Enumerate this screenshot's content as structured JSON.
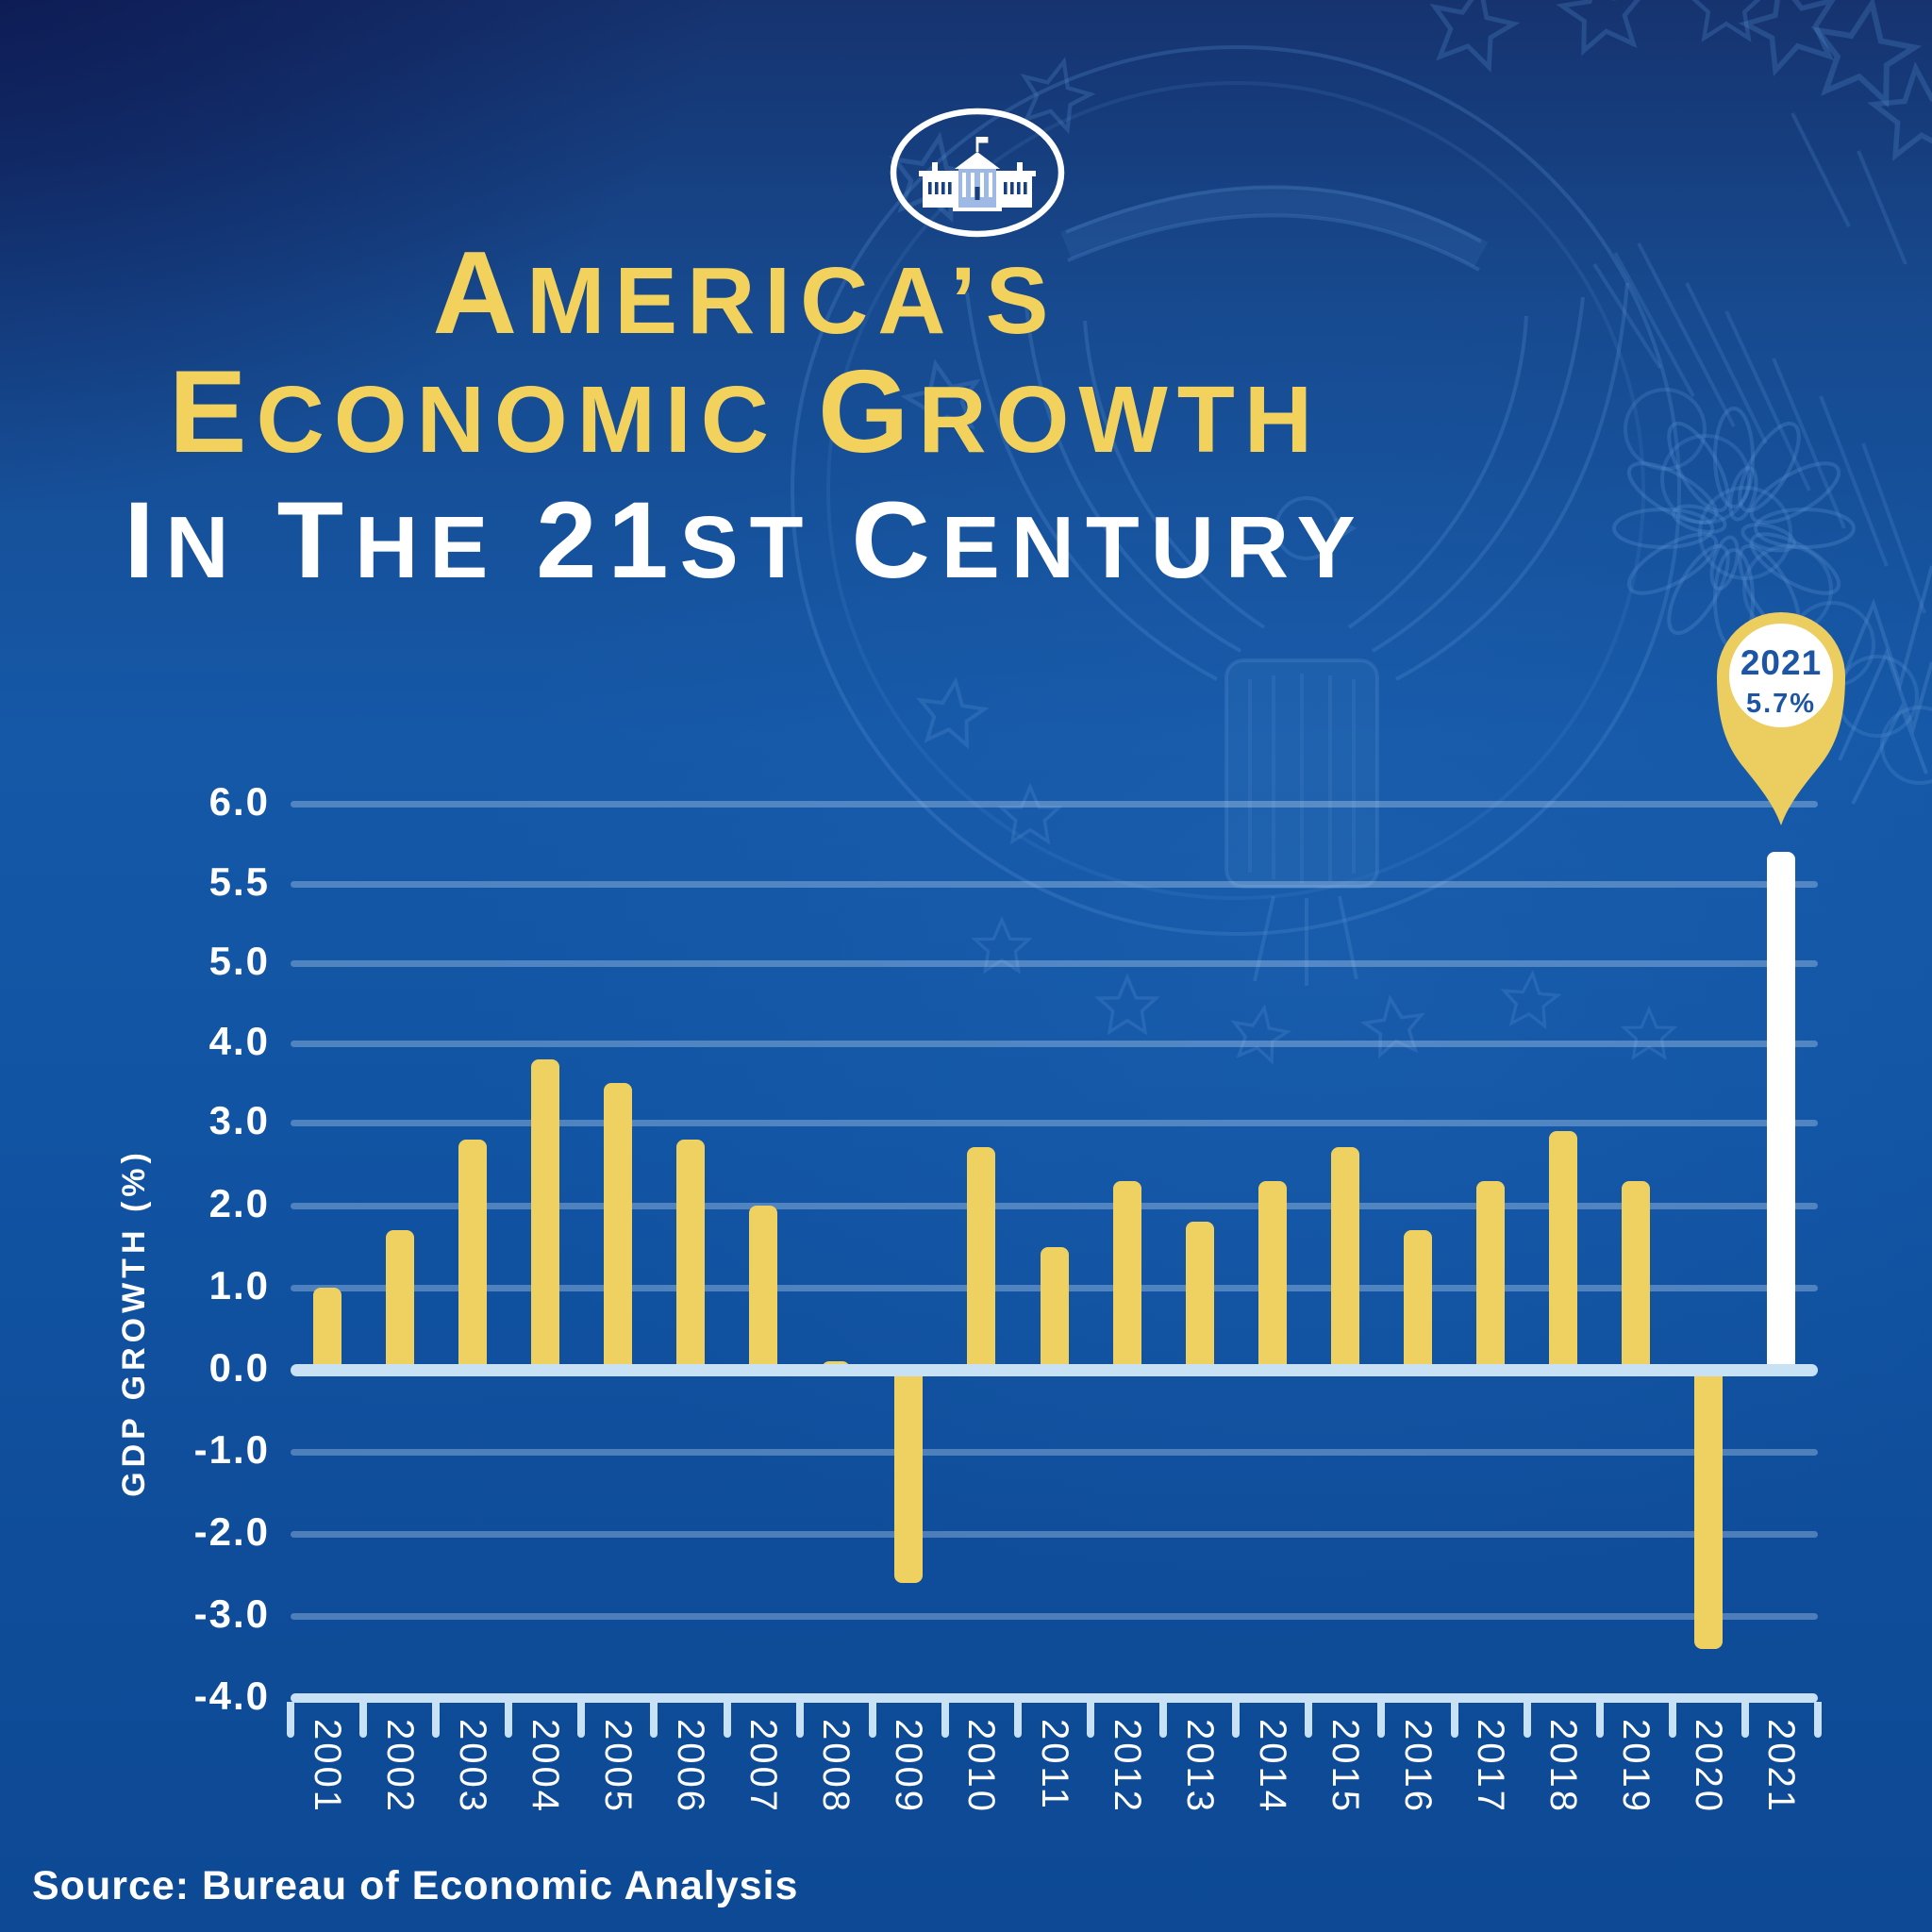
{
  "logo": {
    "name": "white-house-logo"
  },
  "title": {
    "line1_words": [
      "America’s"
    ],
    "line2_words": [
      "Economic",
      "Growth"
    ],
    "line3_words": [
      "In",
      "the",
      "21st",
      "Century"
    ]
  },
  "callout": {
    "year": "2021",
    "value_label": "5.7%"
  },
  "chart_data": {
    "type": "bar",
    "title": "America’s Economic Growth in the 21st Century",
    "ylabel": "GDP Growth (%)",
    "xlabel": "",
    "categories": [
      "2001",
      "2002",
      "2003",
      "2004",
      "2005",
      "2006",
      "2007",
      "2008",
      "2009",
      "2010",
      "2011",
      "2012",
      "2013",
      "2014",
      "2015",
      "2016",
      "2017",
      "2018",
      "2019",
      "2020",
      "2021"
    ],
    "values": [
      1.0,
      1.7,
      2.8,
      3.8,
      3.5,
      2.8,
      2.0,
      0.1,
      -2.6,
      2.7,
      1.5,
      2.3,
      1.8,
      2.3,
      2.7,
      1.7,
      2.3,
      2.9,
      2.3,
      -3.4,
      5.7
    ],
    "highlight": {
      "year": "2021",
      "value": 5.7,
      "label": "5.7%"
    },
    "y_axis_ticks": [
      6.0,
      5.5,
      5.0,
      4.0,
      3.0,
      2.0,
      1.0,
      0.0,
      -1.0,
      -2.0,
      -3.0,
      -4.0
    ],
    "y_tick_labels": [
      "6.0",
      "5.5",
      "5.0",
      "4.0",
      "3.0",
      "2.0",
      "1.0",
      "0.0",
      "-1.0",
      "-2.0",
      "-3.0",
      "-4.0"
    ],
    "grid": true,
    "legend": "none",
    "tick_spacing": "uniform",
    "bar_color": "#EFD161",
    "highlight_bar_color": "#FFFFFF"
  },
  "source": {
    "text": "Source: Bureau of Economic Analysis"
  },
  "colors": {
    "background_dark": "#14266B",
    "background_mid": "#1154A3",
    "title_yellow": "#F2D25C",
    "bar_yellow": "#EFD161",
    "axis_light_blue": "#C9E1F4",
    "gridline": "rgba(198,224,248,0.34)",
    "pin_gold": "#ECCE60",
    "pin_text_blue": "#1D55A5",
    "watermark_blue": "#5A92D4"
  }
}
